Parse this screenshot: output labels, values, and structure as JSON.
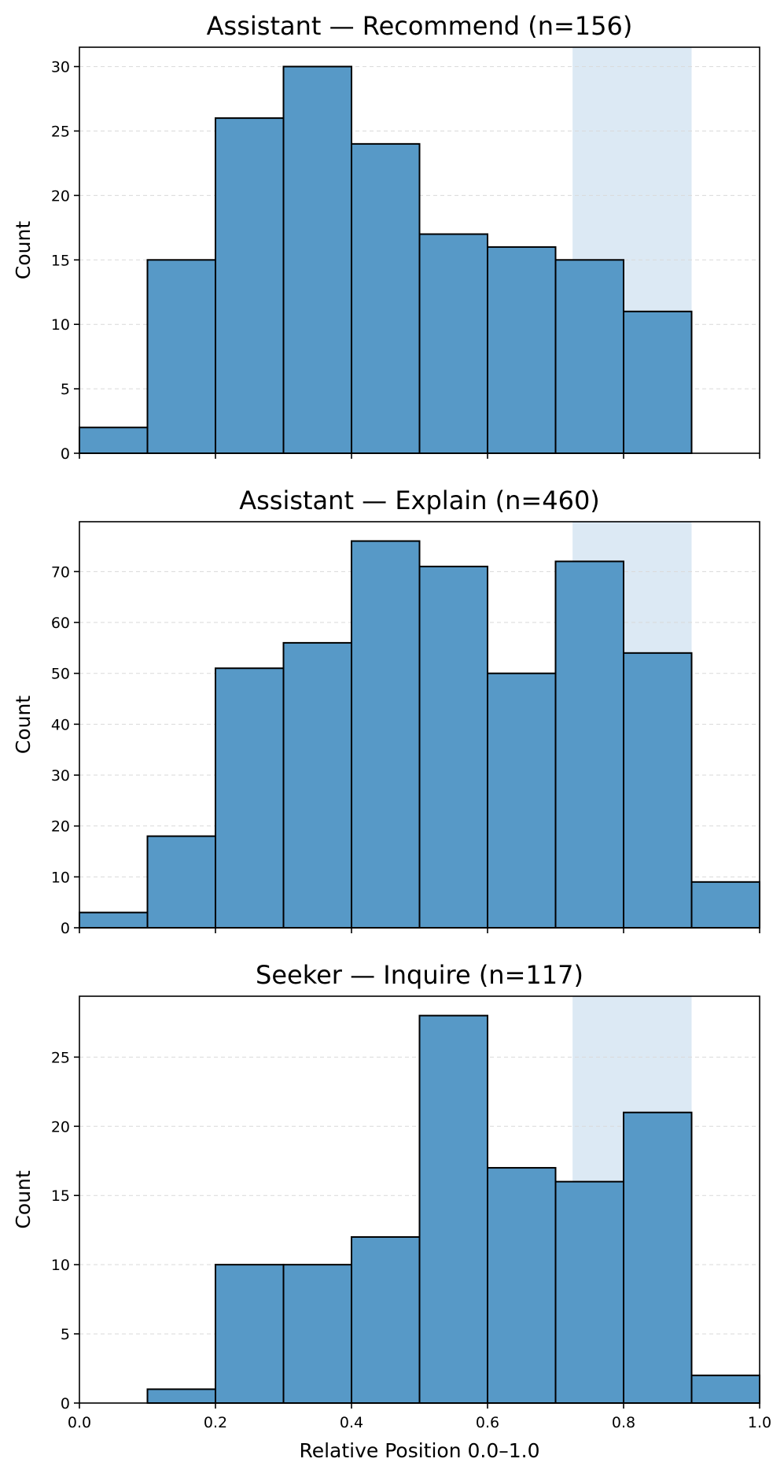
{
  "chart_data": [
    {
      "type": "bar",
      "title": "Assistant — Recommend (n=156)",
      "ylabel": "Count",
      "xlabel": "",
      "bin_edges": [
        0.0,
        0.1,
        0.2,
        0.3,
        0.4,
        0.5,
        0.6,
        0.7,
        0.8,
        0.9,
        1.0
      ],
      "values": [
        2,
        15,
        26,
        30,
        24,
        17,
        16,
        15,
        11,
        0
      ],
      "xlim": [
        0.0,
        1.0
      ],
      "ylim": [
        0,
        31.5
      ],
      "yticks": [
        0,
        5,
        10,
        15,
        20,
        25,
        30
      ],
      "xticks": [
        0.0,
        0.2,
        0.4,
        0.6,
        0.8,
        1.0
      ],
      "xtick_labels_shown": false,
      "highlight_band": [
        0.725,
        0.9
      ],
      "grid": "y"
    },
    {
      "type": "bar",
      "title": "Assistant — Explain (n=460)",
      "ylabel": "Count",
      "xlabel": "",
      "bin_edges": [
        0.0,
        0.1,
        0.2,
        0.3,
        0.4,
        0.5,
        0.6,
        0.7,
        0.8,
        0.9,
        1.0
      ],
      "values": [
        3,
        18,
        51,
        56,
        76,
        71,
        50,
        72,
        54,
        9
      ],
      "xlim": [
        0.0,
        1.0
      ],
      "ylim": [
        0,
        79.8
      ],
      "yticks": [
        0,
        10,
        20,
        30,
        40,
        50,
        60,
        70
      ],
      "xticks": [
        0.0,
        0.2,
        0.4,
        0.6,
        0.8,
        1.0
      ],
      "xtick_labels_shown": false,
      "highlight_band": [
        0.725,
        0.9
      ],
      "grid": "y"
    },
    {
      "type": "bar",
      "title": "Seeker — Inquire (n=117)",
      "ylabel": "Count",
      "xlabel": "Relative Position 0.0–1.0",
      "bin_edges": [
        0.0,
        0.1,
        0.2,
        0.3,
        0.4,
        0.5,
        0.6,
        0.7,
        0.8,
        0.9,
        1.0
      ],
      "values": [
        0,
        1,
        10,
        10,
        12,
        28,
        17,
        16,
        21,
        2
      ],
      "xlim": [
        0.0,
        1.0
      ],
      "ylim": [
        0,
        29.4
      ],
      "yticks": [
        0,
        5,
        10,
        15,
        20,
        25
      ],
      "xticks": [
        0.0,
        0.2,
        0.4,
        0.6,
        0.8,
        1.0
      ],
      "xtick_labels": [
        "0.0",
        "0.2",
        "0.4",
        "0.6",
        "0.8",
        "1.0"
      ],
      "xtick_labels_shown": true,
      "highlight_band": [
        0.725,
        0.9
      ],
      "grid": "y"
    }
  ]
}
